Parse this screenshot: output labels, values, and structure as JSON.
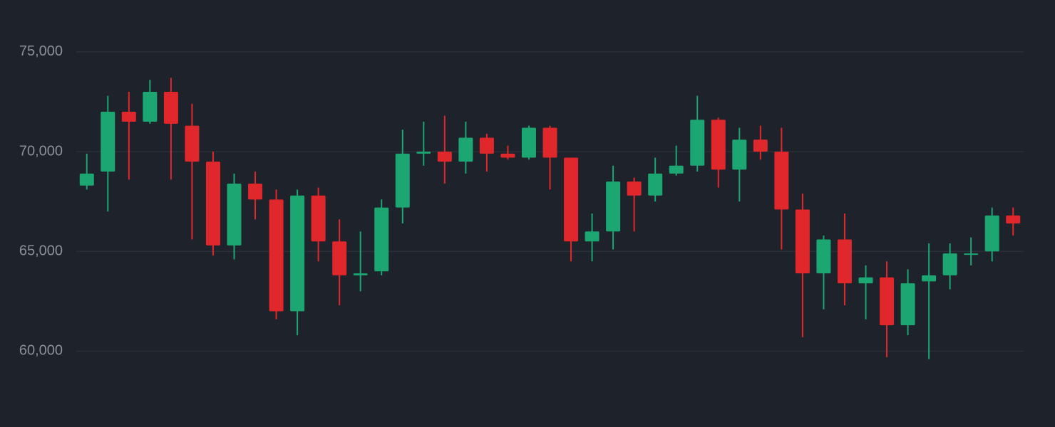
{
  "chart_data": {
    "type": "candlestick",
    "up_color": "#1ba672",
    "down_color": "#e0272b",
    "grid": true,
    "ylim": [
      56200,
      77600
    ],
    "yticks": [
      {
        "value": 60000,
        "label": "60,000"
      },
      {
        "value": 65000,
        "label": "65,000"
      },
      {
        "value": 70000,
        "label": "70,000"
      },
      {
        "value": 75000,
        "label": "75,000"
      }
    ],
    "open": [
      68300,
      69000,
      72000,
      71500,
      73000,
      71300,
      69500,
      65300,
      68400,
      67600,
      62000,
      67800,
      65500,
      63800,
      64000,
      67200,
      69900,
      70000,
      69500,
      70700,
      69900,
      69700,
      71200,
      69700,
      65500,
      66000,
      68500,
      67800,
      68900,
      69300,
      71600,
      69100,
      70600,
      70000,
      67100,
      63900,
      65600,
      63400,
      63700,
      61300,
      63500,
      63800,
      64900,
      65000,
      66800
    ],
    "high": [
      69900,
      72800,
      73000,
      73600,
      73700,
      72400,
      70000,
      68900,
      69000,
      68100,
      68100,
      68200,
      66600,
      66000,
      67600,
      71100,
      71500,
      71800,
      71500,
      70900,
      70300,
      71300,
      71300,
      69700,
      66900,
      69300,
      68700,
      69700,
      70300,
      72800,
      71700,
      71200,
      71300,
      71200,
      67900,
      65800,
      66900,
      64300,
      64500,
      64100,
      65400,
      65400,
      65700,
      67200,
      67200
    ],
    "low": [
      68100,
      67000,
      68600,
      71400,
      68600,
      65600,
      64800,
      64600,
      66600,
      61600,
      60800,
      64500,
      62300,
      63000,
      63800,
      66400,
      69300,
      68400,
      68900,
      69000,
      69600,
      69600,
      68100,
      64500,
      64500,
      65100,
      66000,
      67500,
      68800,
      69000,
      68200,
      67500,
      69600,
      65100,
      60700,
      62100,
      62300,
      61600,
      59700,
      60800,
      59600,
      63100,
      64300,
      64500,
      65800
    ],
    "close": [
      68900,
      72000,
      71500,
      73000,
      71400,
      69500,
      65300,
      68400,
      67600,
      62000,
      67800,
      65500,
      63800,
      63900,
      67200,
      69900,
      70000,
      69500,
      70700,
      69900,
      69700,
      71200,
      69700,
      65500,
      66000,
      68500,
      67800,
      68900,
      69300,
      71600,
      69100,
      70600,
      70000,
      67100,
      63900,
      65600,
      63400,
      63700,
      61300,
      63400,
      63800,
      64900,
      64900,
      66800,
      66400
    ]
  }
}
